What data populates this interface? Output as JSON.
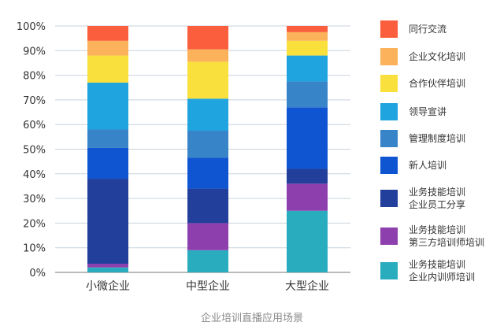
{
  "chart_data": {
    "type": "bar",
    "stacked": true,
    "percent": true,
    "caption": "企业培训直播应用场景",
    "categories": [
      "小微企业",
      "中型企业",
      "大型企业"
    ],
    "ylim": [
      0,
      100
    ],
    "yticks": [
      "0%",
      "10%",
      "20%",
      "30%",
      "40%",
      "50%",
      "60%",
      "70%",
      "80%",
      "90%",
      "100%"
    ],
    "grid": true,
    "legend_position": "right",
    "series": [
      {
        "name": [
          "业务技能培训",
          "企业内训师培训"
        ],
        "color": "#2aacbf",
        "values": [
          2,
          9,
          25
        ]
      },
      {
        "name": [
          "业务技能培训",
          "第三方培训师培训"
        ],
        "color": "#8e3fae",
        "values": [
          1.5,
          11,
          11
        ]
      },
      {
        "name": [
          "业务技能培训",
          "企业员工分享"
        ],
        "color": "#213f9b",
        "values": [
          34.5,
          14,
          6
        ]
      },
      {
        "name": [
          "新人培训"
        ],
        "color": "#0f55d2",
        "values": [
          12.5,
          12.5,
          25
        ]
      },
      {
        "name": [
          "管理制度培训"
        ],
        "color": "#3784c8",
        "values": [
          7.5,
          11,
          10.5
        ]
      },
      {
        "name": [
          "领导宣讲"
        ],
        "color": "#20a4e0",
        "values": [
          19,
          13,
          10.5
        ]
      },
      {
        "name": [
          "合作伙伴培训"
        ],
        "color": "#fae03c",
        "values": [
          11,
          15,
          6
        ]
      },
      {
        "name": [
          "企业文化培训"
        ],
        "color": "#fbb25a",
        "values": [
          6,
          5,
          3.5
        ]
      },
      {
        "name": [
          "同行交流"
        ],
        "color": "#fb5e3c",
        "values": [
          6,
          9.5,
          2.5
        ]
      }
    ]
  }
}
